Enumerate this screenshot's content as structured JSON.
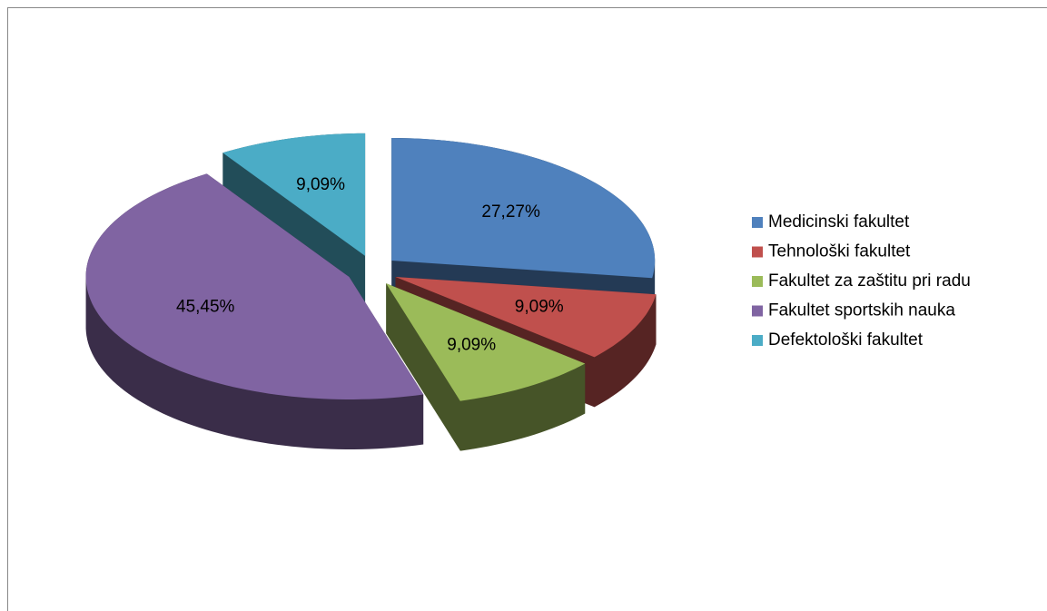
{
  "chart_data": {
    "type": "pie3d",
    "categories": [
      "Medicinski fakultet",
      "Tehnološki fakultet",
      "Fakultet za zaštitu pri radu",
      "Fakultet sportskih nauka",
      "Defektološki fakultet"
    ],
    "values": [
      27.27,
      9.09,
      9.09,
      45.45,
      9.09
    ],
    "value_labels": [
      "27,27%",
      "9,09%",
      "9,09%",
      "45,45%",
      "9,09%"
    ],
    "colors": [
      "#4f81bd",
      "#c0504d",
      "#9bbb59",
      "#8064a2",
      "#4bacc6"
    ],
    "legend": "right"
  }
}
